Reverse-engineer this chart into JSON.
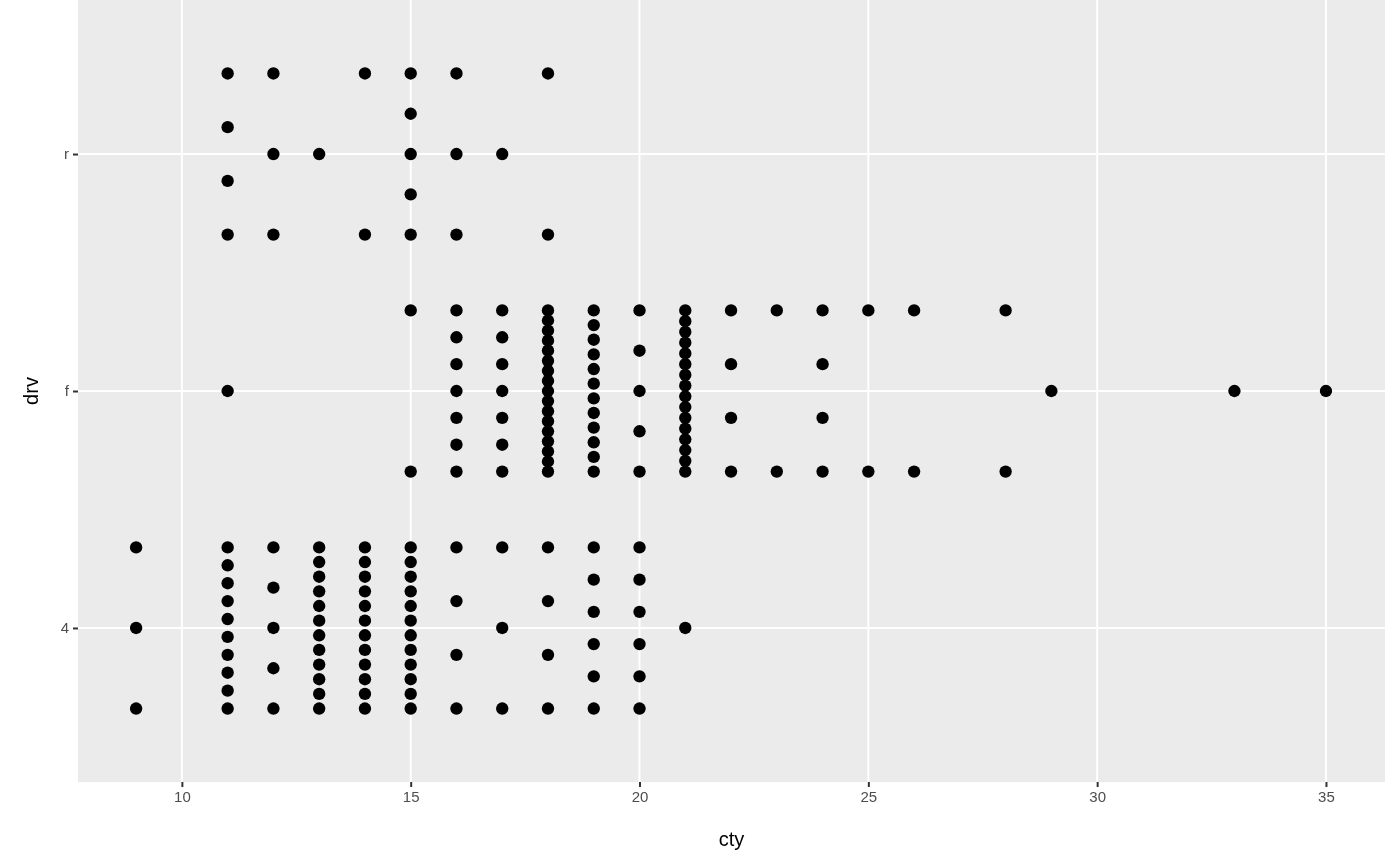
{
  "chart_data": {
    "type": "scatter",
    "xlabel": "cty",
    "ylabel": "drv",
    "orientation": "horizontal",
    "categories": [
      "r",
      "f",
      "4"
    ],
    "series": [
      {
        "color": "#000000",
        "x": [
          "r",
          "r",
          "r",
          "r",
          "r",
          "r",
          "r",
          "r",
          "r",
          "r",
          "r",
          "r",
          "r",
          "r",
          "r",
          "r",
          "r",
          "r",
          "r",
          "r",
          "r"
        ],
        "values": [
          11,
          11,
          11,
          11,
          12,
          12,
          12,
          13,
          14,
          14,
          15,
          15,
          15,
          15,
          15,
          16,
          16,
          16,
          17,
          18,
          18
        ]
      },
      {
        "color": "#000000",
        "x": [
          "f",
          "f",
          "f",
          "f",
          "f",
          "f",
          "f",
          "f",
          "f",
          "f",
          "f",
          "f",
          "f",
          "f",
          "f",
          "f",
          "f",
          "f",
          "f",
          "f",
          "f",
          "f",
          "f",
          "f",
          "f",
          "f",
          "f",
          "f",
          "f",
          "f",
          "f",
          "f",
          "f",
          "f",
          "f",
          "f",
          "f",
          "f",
          "f",
          "f",
          "f",
          "f",
          "f",
          "f",
          "f",
          "f",
          "f",
          "f",
          "f",
          "f",
          "f",
          "f",
          "f",
          "f",
          "f",
          "f",
          "f",
          "f",
          "f",
          "f",
          "f",
          "f",
          "f",
          "f",
          "f",
          "f",
          "f",
          "f",
          "f",
          "f",
          "f",
          "f",
          "f",
          "f",
          "f",
          "f",
          "f",
          "f",
          "f",
          "f",
          "f",
          "f",
          "f",
          "f",
          "f",
          "f"
        ],
        "values": [
          11,
          15,
          15,
          16,
          16,
          16,
          16,
          16,
          16,
          16,
          17,
          17,
          17,
          17,
          17,
          17,
          17,
          18,
          18,
          18,
          18,
          18,
          18,
          18,
          18,
          18,
          18,
          18,
          18,
          18,
          18,
          18,
          18,
          18,
          19,
          19,
          19,
          19,
          19,
          19,
          19,
          19,
          19,
          19,
          19,
          19,
          20,
          20,
          20,
          20,
          20,
          21,
          21,
          21,
          21,
          21,
          21,
          21,
          21,
          21,
          21,
          21,
          21,
          21,
          21,
          21,
          21,
          22,
          22,
          22,
          22,
          23,
          23,
          24,
          24,
          24,
          24,
          25,
          25,
          26,
          26,
          28,
          28,
          29,
          33,
          35
        ]
      },
      {
        "color": "#000000",
        "x": [
          "4",
          "4",
          "4",
          "4",
          "4",
          "4",
          "4",
          "4",
          "4",
          "4",
          "4",
          "4",
          "4",
          "4",
          "4",
          "4",
          "4",
          "4",
          "4",
          "4",
          "4",
          "4",
          "4",
          "4",
          "4",
          "4",
          "4",
          "4",
          "4",
          "4",
          "4",
          "4",
          "4",
          "4",
          "4",
          "4",
          "4",
          "4",
          "4",
          "4",
          "4",
          "4",
          "4",
          "4",
          "4",
          "4",
          "4",
          "4",
          "4",
          "4",
          "4",
          "4",
          "4",
          "4",
          "4",
          "4",
          "4",
          "4",
          "4",
          "4",
          "4",
          "4",
          "4",
          "4",
          "4",
          "4",
          "4",
          "4",
          "4",
          "4",
          "4",
          "4",
          "4",
          "4",
          "4",
          "4",
          "4",
          "4"
        ],
        "values": [
          9,
          9,
          9,
          11,
          11,
          11,
          11,
          11,
          11,
          11,
          11,
          11,
          11,
          12,
          12,
          12,
          12,
          12,
          13,
          13,
          13,
          13,
          13,
          13,
          13,
          13,
          13,
          13,
          13,
          13,
          14,
          14,
          14,
          14,
          14,
          14,
          14,
          14,
          14,
          14,
          14,
          14,
          15,
          15,
          15,
          15,
          15,
          15,
          15,
          15,
          15,
          15,
          15,
          15,
          16,
          16,
          16,
          16,
          17,
          17,
          17,
          18,
          18,
          18,
          18,
          19,
          19,
          19,
          19,
          19,
          19,
          20,
          20,
          20,
          20,
          20,
          20,
          21
        ]
      }
    ],
    "marker": "circle",
    "grid": true,
    "xlim": [
      7.73,
      36.29
    ],
    "xticks": [
      10,
      15,
      20,
      25,
      30,
      35
    ]
  }
}
